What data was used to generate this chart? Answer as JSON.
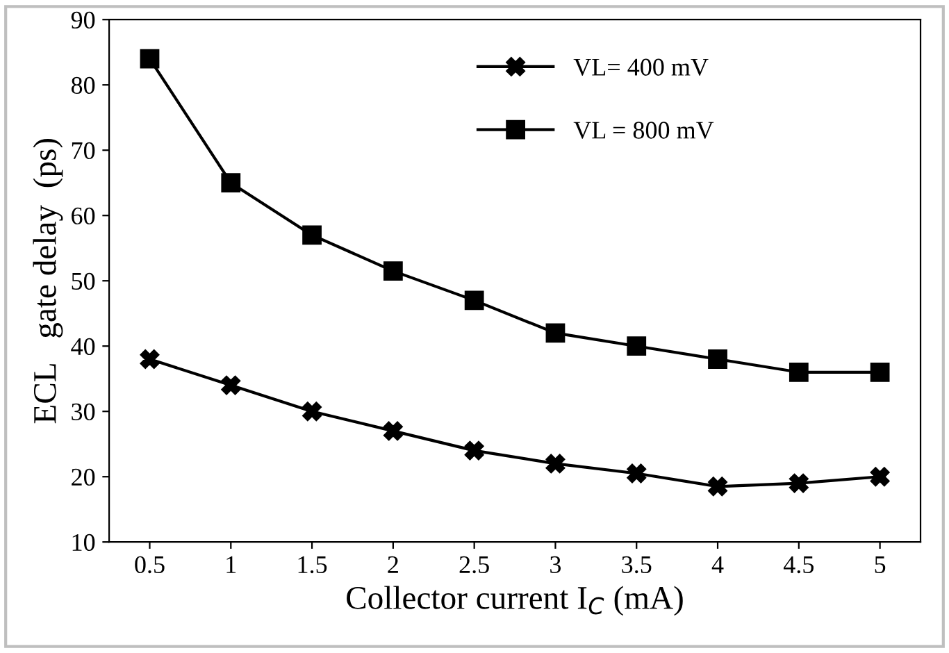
{
  "chart_data": {
    "type": "line",
    "xlabel": "Collector current I$_{C}$ (mA)",
    "ylabel": "ECL   gate delay  (ps)",
    "categories": [
      "0.5",
      "1",
      "1.5",
      "2",
      "2.5",
      "3",
      "3.5",
      "4",
      "4.5",
      "5"
    ],
    "series": [
      {
        "name": "VL= 400 mV",
        "color": "#000000",
        "marker": "cross",
        "values": [
          38,
          34,
          30,
          27,
          24,
          22,
          20.5,
          18.5,
          19,
          20
        ]
      },
      {
        "name": "VL = 800 mV",
        "color": "#000000",
        "marker": "square",
        "values": [
          84,
          65,
          57,
          51.5,
          47,
          42,
          40,
          38,
          36,
          36
        ]
      }
    ],
    "ylim": [
      10,
      90
    ],
    "yticks": [
      10,
      20,
      30,
      40,
      50,
      60,
      70,
      80,
      90
    ],
    "grid": false,
    "legend": "top",
    "line_style": "solid"
  }
}
